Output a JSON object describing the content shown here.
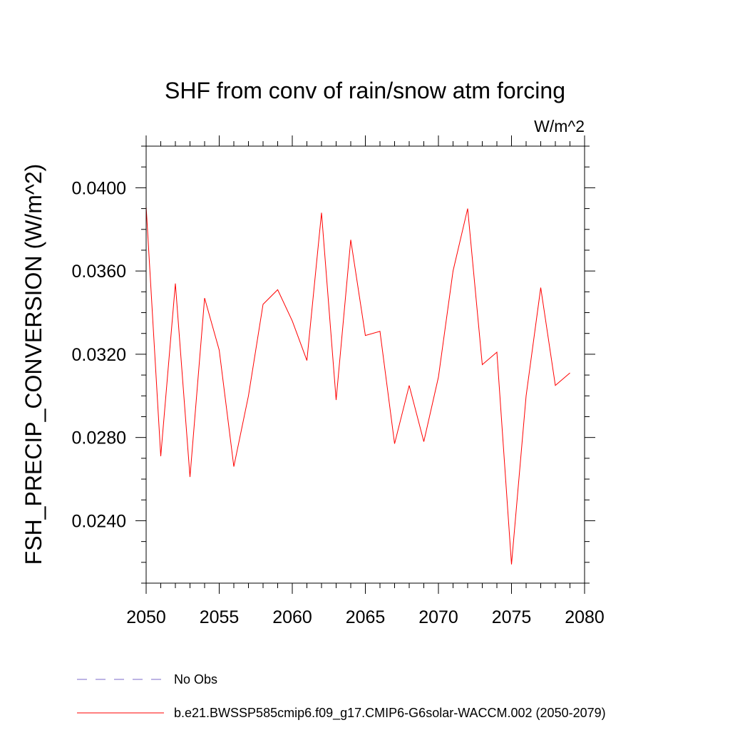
{
  "chart_data": {
    "type": "line",
    "title": "SHF from conv of rain/snow atm forcing",
    "units": "W/m^2",
    "ylabel": "FSH_PRECIP_CONVERSION  (W/m^2)",
    "xlabel": "",
    "xlim": [
      2050,
      2080
    ],
    "ylim": [
      0.021,
      0.042
    ],
    "x_ticks": [
      2050,
      2055,
      2060,
      2065,
      2070,
      2075,
      2080
    ],
    "x_tick_labels": [
      "2050",
      "2055",
      "2060",
      "2065",
      "2070",
      "2075",
      "2080"
    ],
    "y_ticks": [
      0.024,
      0.028,
      0.032,
      0.036,
      0.04
    ],
    "y_tick_labels": [
      "0.0240",
      "0.0280",
      "0.0320",
      "0.0360",
      "0.0400"
    ],
    "grid": false,
    "legend_position": "bottom",
    "series": [
      {
        "name": "b.e21.BWSSP585cmip6.f09_g17.CMIP6-G6solar-WACCM.002 (2050-2079)",
        "color": "#ff0000",
        "style": "solid",
        "x": [
          2050,
          2051,
          2052,
          2053,
          2054,
          2055,
          2056,
          2057,
          2058,
          2059,
          2060,
          2061,
          2062,
          2063,
          2064,
          2065,
          2066,
          2067,
          2068,
          2069,
          2070,
          2071,
          2072,
          2073,
          2074,
          2075,
          2076,
          2077,
          2078,
          2079
        ],
        "values": [
          0.0391,
          0.0271,
          0.0354,
          0.0261,
          0.0347,
          0.0322,
          0.0266,
          0.03,
          0.0344,
          0.0351,
          0.0336,
          0.0317,
          0.0388,
          0.0298,
          0.0375,
          0.0329,
          0.0331,
          0.0277,
          0.0305,
          0.0278,
          0.0309,
          0.036,
          0.039,
          0.0315,
          0.0321,
          0.0219,
          0.03,
          0.0352,
          0.0305,
          0.0311
        ]
      }
    ],
    "legend": [
      {
        "label": "No Obs",
        "color": "#7b68c8",
        "style": "dashed"
      },
      {
        "label": "b.e21.BWSSP585cmip6.f09_g17.CMIP6-G6solar-WACCM.002 (2050-2079)",
        "color": "#ff0000",
        "style": "solid"
      }
    ]
  }
}
